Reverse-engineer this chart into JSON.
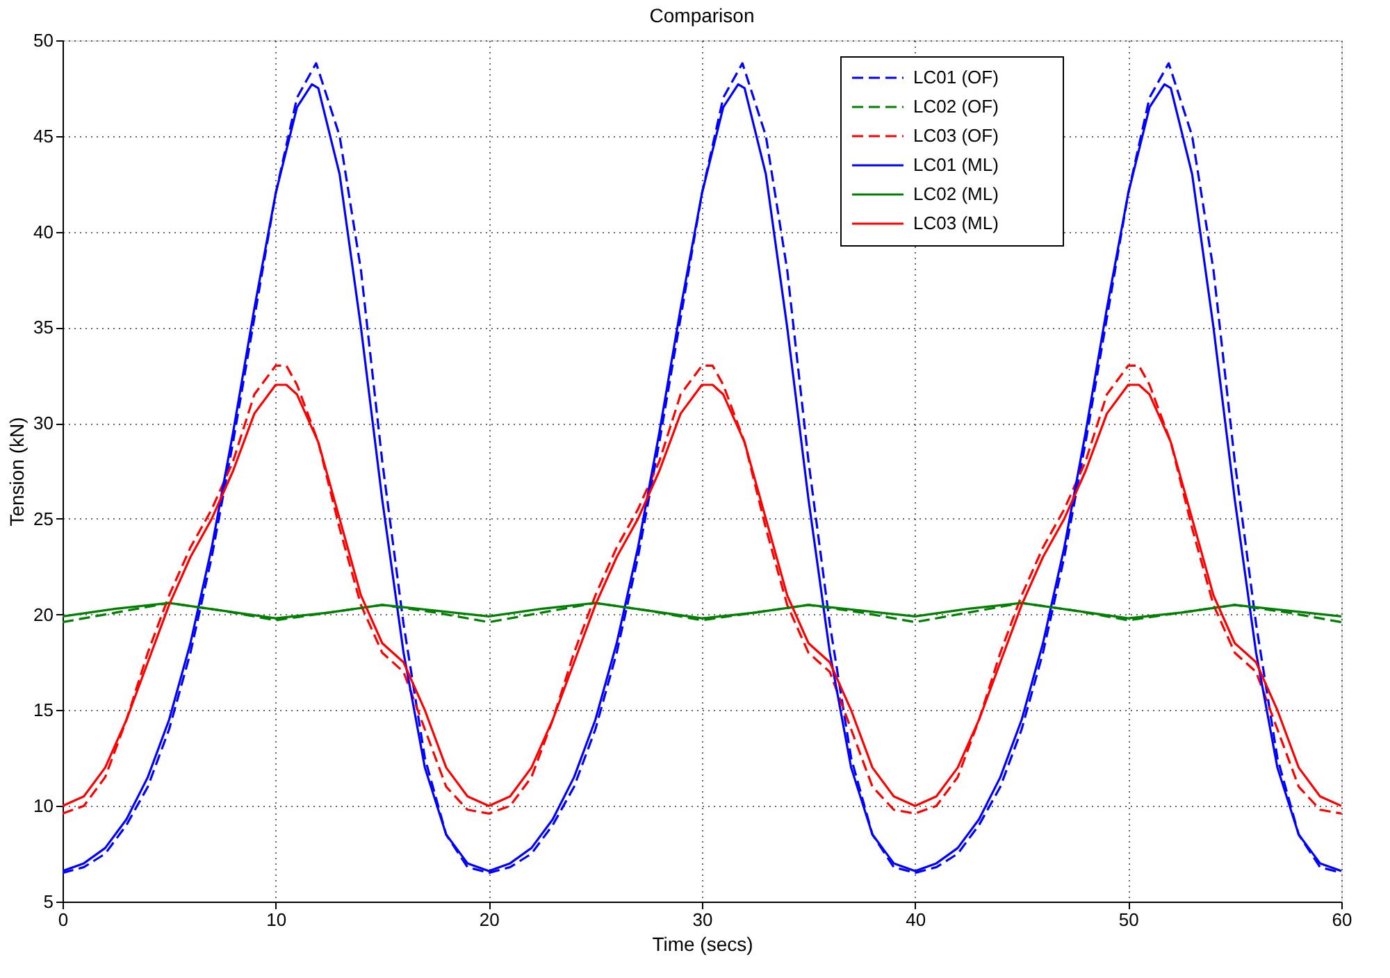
{
  "chart_data": {
    "type": "line",
    "title": "Comparison",
    "xlabel": "Time (secs)",
    "ylabel": "Tension (kN)",
    "xlim": [
      0,
      60
    ],
    "xticks": [
      0,
      10,
      20,
      30,
      40,
      50,
      60
    ],
    "ylim": [
      5,
      50
    ],
    "yticks": [
      5,
      10,
      15,
      20,
      25,
      30,
      35,
      40,
      45,
      50
    ],
    "grid": true,
    "legend": "top right",
    "marker": "none",
    "series": [
      {
        "name": "LC01 (OF)",
        "color": "#0000ff",
        "line_style": "dashed",
        "x": [
          0,
          1,
          2,
          3,
          4,
          5,
          6,
          7,
          8,
          9,
          10,
          11,
          11.9,
          13,
          14,
          15,
          16,
          17,
          18,
          19,
          20,
          21,
          22,
          23,
          24,
          25,
          26,
          27,
          28,
          29,
          30,
          31,
          31.9,
          33,
          34,
          35,
          36,
          37,
          38,
          39,
          40,
          41,
          42,
          43,
          44,
          45,
          46,
          47,
          48,
          49,
          50,
          51,
          51.9,
          53,
          54,
          55,
          56,
          57,
          58,
          59,
          60
        ],
        "values": [
          6.5,
          6.8,
          7.5,
          9,
          11,
          14,
          18,
          23,
          29,
          35.5,
          42,
          47,
          48.8,
          45,
          38,
          28,
          19.5,
          12.5,
          8.5,
          6.8,
          6.5,
          6.8,
          7.5,
          9,
          11,
          14,
          18,
          23,
          29,
          35.5,
          42,
          47,
          48.8,
          45,
          38,
          28,
          19.5,
          12.5,
          8.5,
          6.8,
          6.5,
          6.8,
          7.5,
          9,
          11,
          14,
          18,
          23,
          29,
          35.5,
          42,
          47,
          48.8,
          45,
          38,
          28,
          19.5,
          12.5,
          8.5,
          6.8,
          6.5
        ]
      },
      {
        "name": "LC02 (OF)",
        "color": "#008000",
        "line_style": "dashed",
        "x": [
          0,
          2.5,
          5,
          7.5,
          10,
          12.5,
          15,
          17.5,
          20,
          22.5,
          25,
          27.5,
          30,
          32.5,
          35,
          37.5,
          40,
          42.5,
          45,
          47.5,
          50,
          52.5,
          55,
          57.5,
          60
        ],
        "values": [
          19.6,
          20.1,
          20.6,
          20.2,
          19.7,
          20.1,
          20.5,
          20.1,
          19.6,
          20.1,
          20.6,
          20.2,
          19.7,
          20.1,
          20.5,
          20.1,
          19.6,
          20.1,
          20.6,
          20.2,
          19.7,
          20.1,
          20.5,
          20.1,
          19.6
        ]
      },
      {
        "name": "LC03 (OF)",
        "color": "#ff0000",
        "line_style": "dashed",
        "x": [
          0,
          1,
          2,
          3,
          4,
          5,
          6,
          7,
          8,
          9,
          10,
          10.5,
          11,
          12,
          13,
          14,
          15,
          16,
          17,
          18,
          19,
          20,
          21,
          22,
          23,
          24,
          25,
          26,
          27,
          28,
          29,
          30,
          30.5,
          31,
          32,
          33,
          34,
          35,
          36,
          37,
          38,
          39,
          40,
          41,
          42,
          43,
          44,
          45,
          46,
          47,
          48,
          49,
          50,
          50.5,
          51,
          52,
          53,
          54,
          55,
          56,
          57,
          58,
          59,
          60
        ],
        "values": [
          9.6,
          10,
          11.5,
          14.5,
          18,
          21,
          23.5,
          25.5,
          28,
          31.5,
          33,
          33,
          32,
          29,
          24.5,
          20.5,
          18,
          17,
          14,
          11,
          9.8,
          9.6,
          10,
          11.5,
          14.5,
          18,
          21,
          23.5,
          25.5,
          28,
          31.5,
          33,
          33,
          32,
          29,
          24.5,
          20.5,
          18,
          17,
          14,
          11,
          9.8,
          9.6,
          10,
          11.5,
          14.5,
          18,
          21,
          23.5,
          25.5,
          28,
          31.5,
          33,
          33,
          32,
          29,
          24.5,
          20.5,
          18,
          17,
          14,
          11,
          9.8,
          9.6
        ]
      },
      {
        "name": "LC01 (ML)",
        "color": "#0000ff",
        "line_style": "solid",
        "x": [
          0,
          1,
          2,
          3,
          4,
          5,
          6,
          7,
          8,
          9,
          10,
          11,
          11.7,
          12,
          13,
          14,
          15,
          16,
          17,
          18,
          19,
          20,
          21,
          22,
          23,
          24,
          25,
          26,
          27,
          28,
          29,
          30,
          31,
          31.7,
          32,
          33,
          34,
          35,
          36,
          37,
          38,
          39,
          40,
          41,
          42,
          43,
          44,
          45,
          46,
          47,
          48,
          49,
          50,
          51,
          51.7,
          52,
          53,
          54,
          55,
          56,
          57,
          58,
          59,
          60
        ],
        "values": [
          6.6,
          7.0,
          7.8,
          9.3,
          11.5,
          14.5,
          18.5,
          23.5,
          29.5,
          36,
          42,
          46.5,
          47.7,
          47.5,
          43,
          35,
          26,
          18,
          12,
          8.5,
          7.0,
          6.6,
          7.0,
          7.8,
          9.3,
          11.5,
          14.5,
          18.5,
          23.5,
          29.5,
          36,
          42,
          46.5,
          47.7,
          47.5,
          43,
          35,
          26,
          18,
          12,
          8.5,
          7.0,
          6.6,
          7.0,
          7.8,
          9.3,
          11.5,
          14.5,
          18.5,
          23.5,
          29.5,
          36,
          42,
          46.5,
          47.7,
          47.5,
          43,
          35,
          26,
          18,
          12,
          8.5,
          7.0,
          6.6
        ]
      },
      {
        "name": "LC02 (ML)",
        "color": "#008000",
        "line_style": "solid",
        "x": [
          0,
          2.5,
          5,
          7.5,
          10,
          12.5,
          15,
          17.5,
          20,
          22.5,
          25,
          27.5,
          30,
          32.5,
          35,
          37.5,
          40,
          42.5,
          45,
          47.5,
          50,
          52.5,
          55,
          57.5,
          60
        ],
        "values": [
          19.9,
          20.3,
          20.6,
          20.2,
          19.8,
          20.1,
          20.5,
          20.2,
          19.9,
          20.3,
          20.6,
          20.2,
          19.8,
          20.1,
          20.5,
          20.2,
          19.9,
          20.3,
          20.6,
          20.2,
          19.8,
          20.1,
          20.5,
          20.2,
          19.9
        ]
      },
      {
        "name": "LC03 (ML)",
        "color": "#ff0000",
        "line_style": "solid",
        "x": [
          0,
          1,
          2,
          3,
          4,
          5,
          6,
          7,
          8,
          9,
          10,
          10.5,
          11,
          12,
          13,
          14,
          15,
          16,
          17,
          18,
          19,
          20,
          21,
          22,
          23,
          24,
          25,
          26,
          27,
          28,
          29,
          30,
          30.5,
          31,
          32,
          33,
          34,
          35,
          36,
          37,
          38,
          39,
          40,
          41,
          42,
          43,
          44,
          45,
          46,
          47,
          48,
          49,
          50,
          50.5,
          51,
          52,
          53,
          54,
          55,
          56,
          57,
          58,
          59,
          60
        ],
        "values": [
          10,
          10.5,
          12,
          14.5,
          17.5,
          20.5,
          23,
          25,
          27.5,
          30.5,
          32,
          32,
          31.5,
          29,
          25,
          21,
          18.5,
          17.5,
          15,
          12,
          10.5,
          10,
          10.5,
          12,
          14.5,
          17.5,
          20.5,
          23,
          25,
          27.5,
          30.5,
          32,
          32,
          31.5,
          29,
          25,
          21,
          18.5,
          17.5,
          15,
          12,
          10.5,
          10,
          10.5,
          12,
          14.5,
          17.5,
          20.5,
          23,
          25,
          27.5,
          30.5,
          32,
          32,
          31.5,
          29,
          25,
          21,
          18.5,
          17.5,
          15,
          12,
          10.5,
          10
        ]
      }
    ]
  }
}
